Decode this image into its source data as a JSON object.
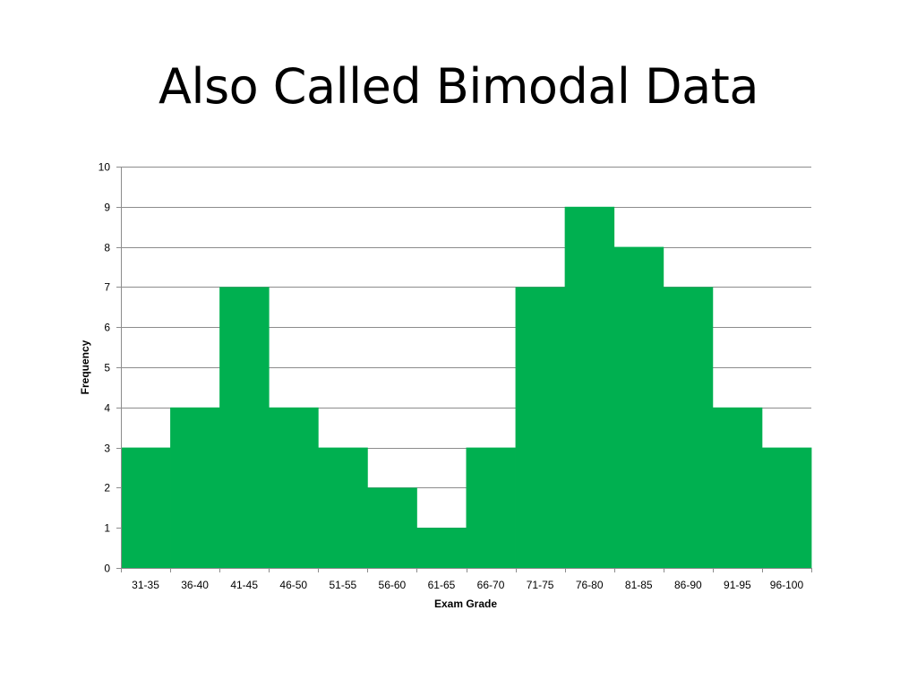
{
  "slide": {
    "title": "Also Called Bimodal Data"
  },
  "colors": {
    "bar": "#00b050",
    "gridline": "#8c8c8c",
    "axis": "#8c8c8c"
  },
  "chart_data": {
    "type": "bar",
    "title": "",
    "xlabel": "Exam Grade",
    "ylabel": "Frequency",
    "ylim": [
      0,
      10
    ],
    "yticks": [
      0,
      1,
      2,
      3,
      4,
      5,
      6,
      7,
      8,
      9,
      10
    ],
    "grid": true,
    "legend": "none",
    "categories": [
      "31-35",
      "36-40",
      "41-45",
      "46-50",
      "51-55",
      "56-60",
      "61-65",
      "66-70",
      "71-75",
      "76-80",
      "81-85",
      "86-90",
      "91-95",
      "96-100"
    ],
    "values": [
      3,
      4,
      7,
      4,
      3,
      2,
      1,
      3,
      7,
      9,
      8,
      7,
      4,
      3
    ]
  }
}
